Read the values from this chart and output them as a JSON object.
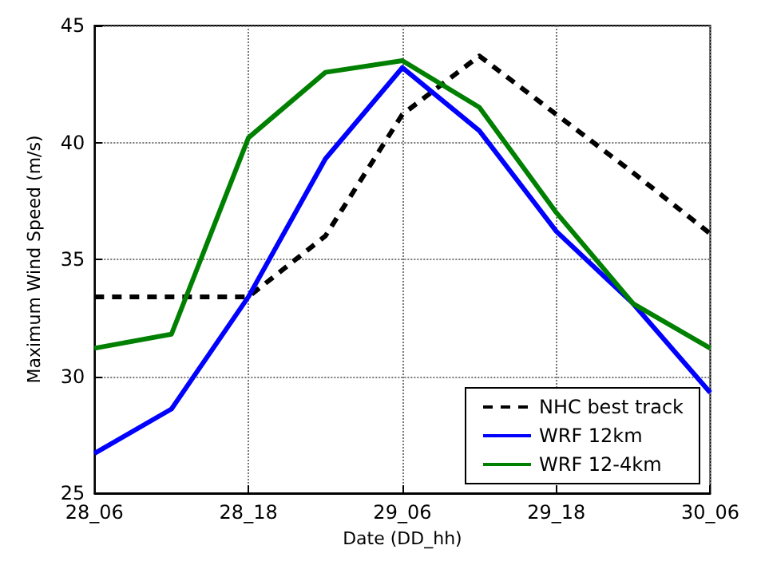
{
  "chart_data": {
    "type": "line",
    "xlabel": "Date (DD_hh)",
    "ylabel": "Maximum Wind Speed (m/s)",
    "categories": [
      "28_06",
      null,
      "28_18",
      null,
      "29_06",
      null,
      "29_18",
      null,
      "30_06"
    ],
    "ylim": [
      25,
      45
    ],
    "yticks": [
      25,
      30,
      35,
      40,
      45
    ],
    "grid": true,
    "legend": "bottom right",
    "marker": "none",
    "series": [
      {
        "name": "NHC best track",
        "color": "#000000",
        "line_style": "dashed",
        "values": [
          33.4,
          33.4,
          33.4,
          36.0,
          41.2,
          43.7,
          41.2,
          38.7,
          36.1
        ]
      },
      {
        "name": "WRF 12km",
        "color": "#0000ff",
        "line_style": "solid",
        "values": [
          26.7,
          28.6,
          33.4,
          39.3,
          43.2,
          40.5,
          36.2,
          33.1,
          29.3
        ]
      },
      {
        "name": "WRF 12-4km",
        "color": "#008000",
        "line_style": "solid",
        "values": [
          31.2,
          31.8,
          40.2,
          43.0,
          43.5,
          41.5,
          37.0,
          33.1,
          31.2
        ]
      }
    ]
  }
}
